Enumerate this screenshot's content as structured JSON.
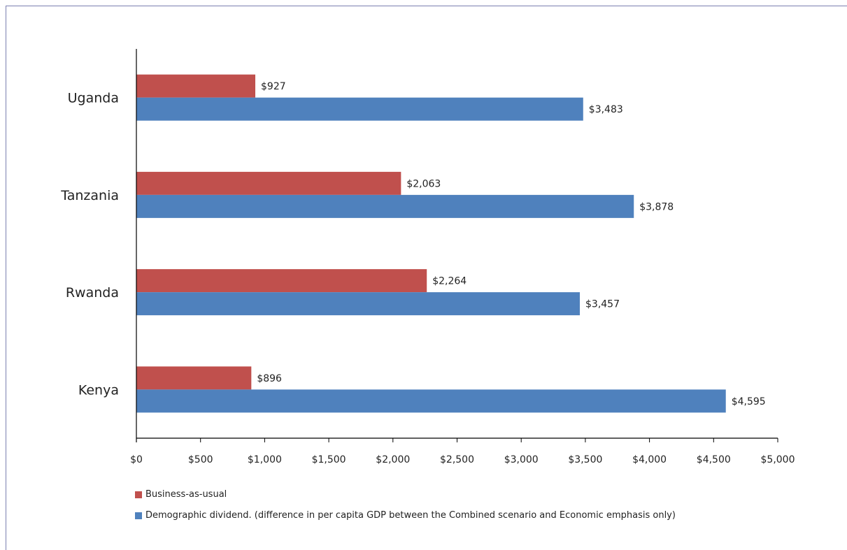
{
  "chart_data": {
    "type": "bar",
    "orientation": "horizontal",
    "categories": [
      "Uganda",
      "Tanzania",
      "Rwanda",
      "Kenya"
    ],
    "series": [
      {
        "name": "Business-as-usual",
        "color": "#c0504d",
        "values": [
          927,
          2063,
          2264,
          896
        ],
        "labels": [
          "$927",
          "$2,063",
          "$2,264",
          "$896"
        ]
      },
      {
        "name": "Demographic dividend. (difference in per capita GDP between the Combined scenario and Economic emphasis only)",
        "color": "#4f81bd",
        "values": [
          3483,
          3878,
          3457,
          4595
        ],
        "labels": [
          "$3,483",
          "$3,878",
          "$3,457",
          "$4,595"
        ]
      }
    ],
    "xlim": [
      0,
      5000
    ],
    "xticks": [
      0,
      500,
      1000,
      1500,
      2000,
      2500,
      3000,
      3500,
      4000,
      4500,
      5000
    ],
    "xtick_labels": [
      "$0",
      "$500",
      "$1,000",
      "$1,500",
      "$2,000",
      "$2,500",
      "$3,000",
      "$3,500",
      "$4,000",
      "$4,500",
      "$5,000"
    ],
    "grid": false,
    "legend_position": "bottom-left"
  }
}
